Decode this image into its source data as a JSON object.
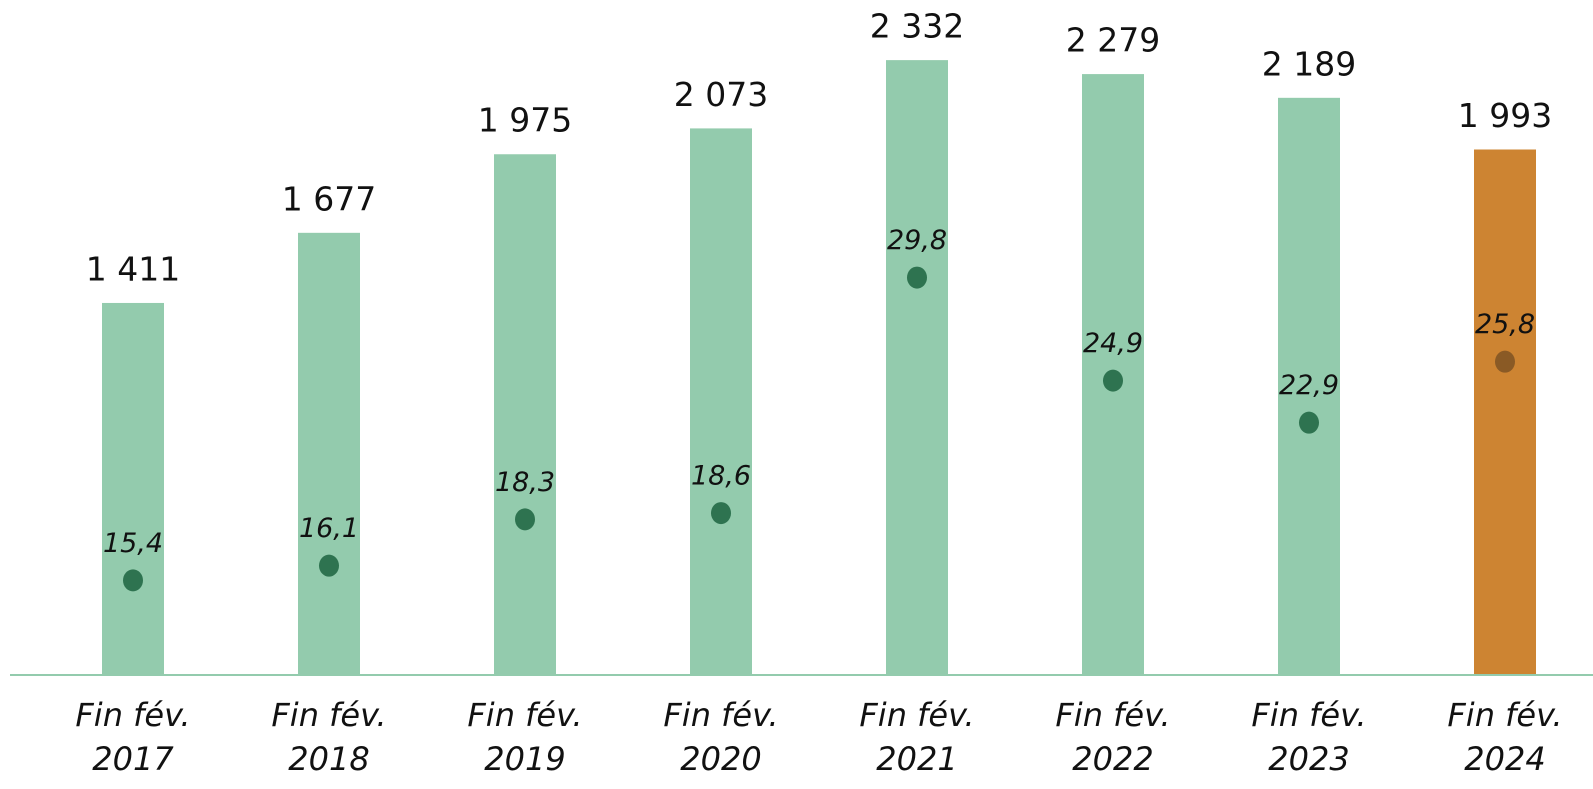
{
  "chart_data": {
    "type": "bar",
    "categories": [
      "Fin fév. 2017",
      "Fin fév. 2018",
      "Fin fév. 2019",
      "Fin fév. 2020",
      "Fin fév. 2021",
      "Fin fév. 2022",
      "Fin fév. 2023",
      "Fin fév. 2024"
    ],
    "series": [
      {
        "type": "bar",
        "colors": [
          "#93cbad",
          "#93cbad",
          "#93cbad",
          "#93cbad",
          "#93cbad",
          "#93cbad",
          "#93cbad",
          "#cd8432"
        ],
        "values": [
          1411,
          1677,
          1975,
          2073,
          2332,
          2279,
          2189,
          1993
        ],
        "value_labels": [
          "1 411",
          "1 677",
          "1 975",
          "2 073",
          "2 332",
          "2 279",
          "2 189",
          "1 993"
        ]
      },
      {
        "type": "scatter",
        "axis": "y2",
        "colors": [
          "#2e7350",
          "#2e7350",
          "#2e7350",
          "#2e7350",
          "#2e7350",
          "#2e7350",
          "#2e7350",
          "#8a5a25"
        ],
        "values": [
          15.4,
          16.1,
          18.3,
          18.6,
          29.8,
          24.9,
          22.9,
          25.8
        ],
        "value_labels": [
          "15,4",
          "16,1",
          "18,3",
          "18,6",
          "29,8",
          "24,9",
          "22,9",
          "25,8"
        ]
      }
    ],
    "ylim": [
      0,
      2560
    ],
    "y2lim": [
      10.9,
      43
    ],
    "axis_color": "#93cbad"
  }
}
